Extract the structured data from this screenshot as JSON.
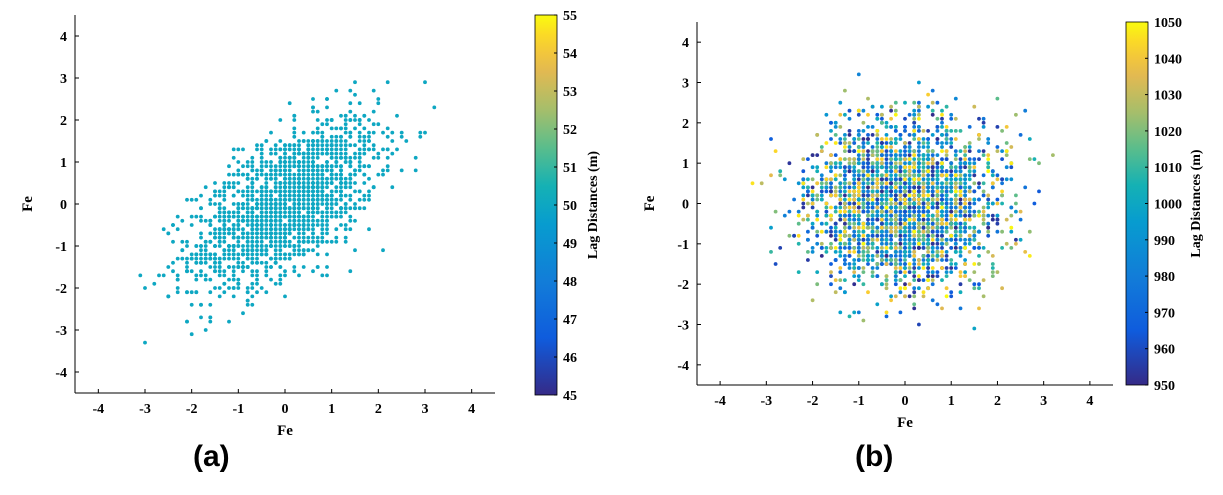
{
  "panels": [
    {
      "label": "(a)"
    },
    {
      "label": "(b)"
    }
  ],
  "chart_data": [
    {
      "type": "scatter",
      "xlabel": "Fe",
      "ylabel": "Fe",
      "xlim": [
        -4.5,
        4.5
      ],
      "ylim": [
        -4.5,
        4.5
      ],
      "xticks": [
        "-4",
        "-3",
        "-2",
        "-1",
        "0",
        "1",
        "2",
        "3",
        "4"
      ],
      "yticks": [
        "-4",
        "-3",
        "-2",
        "-1",
        "0",
        "1",
        "2",
        "3",
        "4"
      ],
      "colorbar": {
        "label": "Lag Distances (m)",
        "min": 45,
        "max": 55,
        "ticks": [
          "45",
          "46",
          "47",
          "48",
          "49",
          "50",
          "51",
          "52",
          "53",
          "54",
          "55"
        ]
      },
      "point_color_value": 50,
      "points": {
        "n": 1800,
        "x_mean": 0.0,
        "y_mean": 0.0,
        "sd": 1.0,
        "correlation": 0.6,
        "rounded_to": 0.1
      },
      "grid": false
    },
    {
      "type": "scatter",
      "xlabel": "Fe",
      "ylabel": "Fe",
      "xlim": [
        -4.5,
        4.5
      ],
      "ylim": [
        -4.5,
        4.5
      ],
      "xticks": [
        "-4",
        "-3",
        "-2",
        "-1",
        "0",
        "1",
        "2",
        "3",
        "4"
      ],
      "yticks": [
        "-4",
        "-3",
        "-2",
        "-1",
        "0",
        "1",
        "2",
        "3",
        "4"
      ],
      "colorbar": {
        "label": "Lag Distances (m)",
        "min": 950,
        "max": 1050,
        "ticks": [
          "950",
          "960",
          "970",
          "980",
          "990",
          "1000",
          "1010",
          "1020",
          "1030",
          "1040",
          "1050"
        ]
      },
      "points": {
        "n": 3000,
        "x_mean": 0.0,
        "y_mean": 0.0,
        "sd": 1.0,
        "correlation": 0.0,
        "rounded_to": 0.1,
        "color_value_range": [
          950,
          1050
        ]
      },
      "grid": false
    }
  ]
}
